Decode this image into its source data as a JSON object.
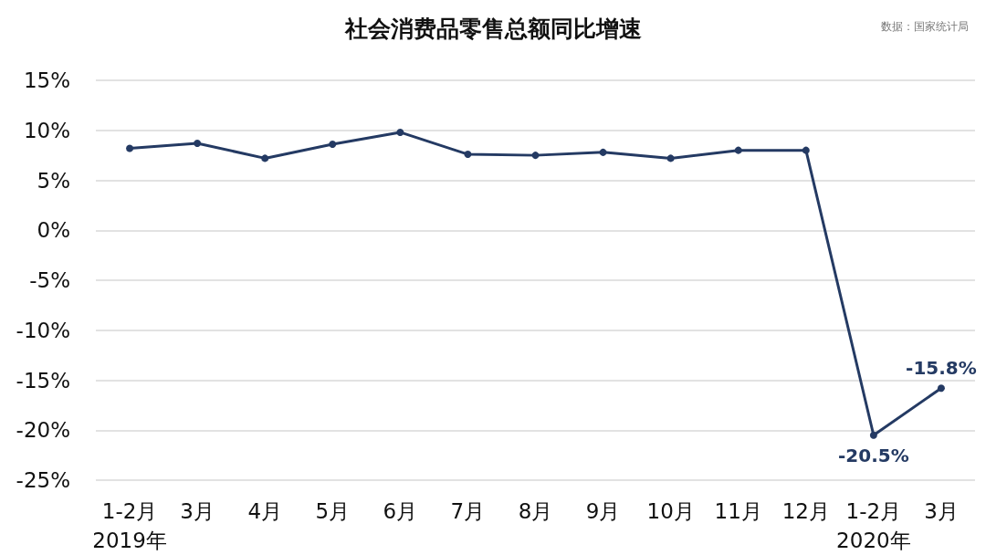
{
  "chart_data": {
    "type": "line",
    "title": "社会消费品零售总额同比增速",
    "annotations": [
      "数据：国家统计局"
    ],
    "categories": [
      "1-2月\n2019年",
      "3月",
      "4月",
      "5月",
      "6月",
      "7月",
      "8月",
      "9月",
      "10月",
      "11月",
      "12月",
      "1-2月\n2020年",
      "3月"
    ],
    "series": [
      {
        "color": "#243a63",
        "values": [
          8.2,
          8.7,
          7.2,
          8.6,
          9.8,
          7.6,
          7.5,
          7.8,
          7.2,
          8.0,
          8.0,
          -20.5,
          -15.8
        ],
        "value_labels": [
          null,
          null,
          null,
          null,
          null,
          null,
          null,
          null,
          null,
          null,
          null,
          "-20.5%",
          "-15.8%"
        ]
      }
    ],
    "ylim": [
      -25,
      15
    ],
    "yticks": [
      {
        "value": -25,
        "label": "-25%"
      },
      {
        "value": -20,
        "label": "-20%"
      },
      {
        "value": -15,
        "label": "-15%"
      },
      {
        "value": -10,
        "label": "-10%"
      },
      {
        "value": -5,
        "label": "-5%"
      },
      {
        "value": 0,
        "label": "0%"
      },
      {
        "value": 5,
        "label": "5%"
      },
      {
        "value": 10,
        "label": "10%"
      },
      {
        "value": 15,
        "label": "15%"
      }
    ],
    "grid": "y",
    "marker": "circle",
    "line_style": "solid"
  }
}
